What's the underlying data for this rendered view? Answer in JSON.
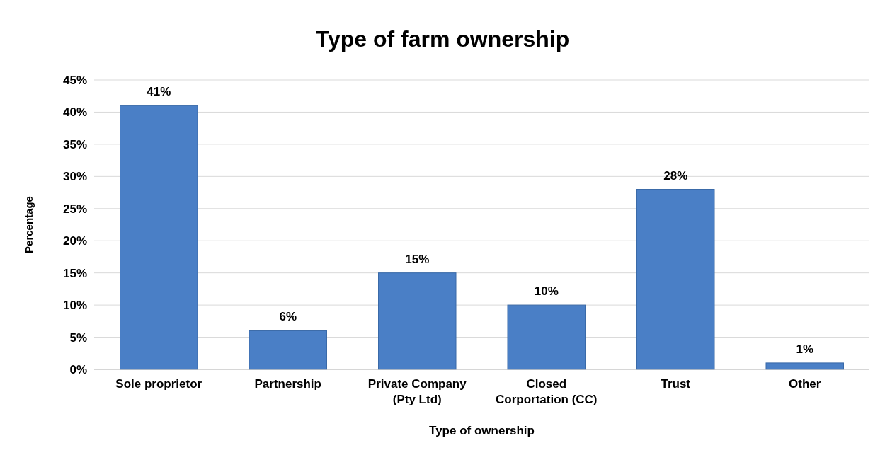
{
  "chart_data": {
    "type": "bar",
    "title": "Type of farm ownership",
    "xlabel": "Type of ownership",
    "ylabel": "Percentage",
    "categories": [
      "Sole proprietor",
      "Partnership",
      "Private Company (Pty Ltd)",
      "Closed Corportation (CC)",
      "Trust",
      "Other"
    ],
    "values": [
      41,
      6,
      15,
      10,
      28,
      1
    ],
    "value_labels": [
      "41%",
      "6%",
      "15%",
      "10%",
      "28%",
      "1%"
    ],
    "color": "#4a7fc6",
    "ylim": [
      0,
      45
    ],
    "yticks": [
      {
        "value": 0,
        "label": "0%"
      },
      {
        "value": 5,
        "label": "5%"
      },
      {
        "value": 10,
        "label": "10%"
      },
      {
        "value": 15,
        "label": "15%"
      },
      {
        "value": 20,
        "label": "20%"
      },
      {
        "value": 25,
        "label": "25%"
      },
      {
        "value": 30,
        "label": "30%"
      },
      {
        "value": 35,
        "label": "35%"
      },
      {
        "value": 40,
        "label": "40%"
      },
      {
        "value": 45,
        "label": "45%"
      }
    ],
    "grid": "y"
  }
}
